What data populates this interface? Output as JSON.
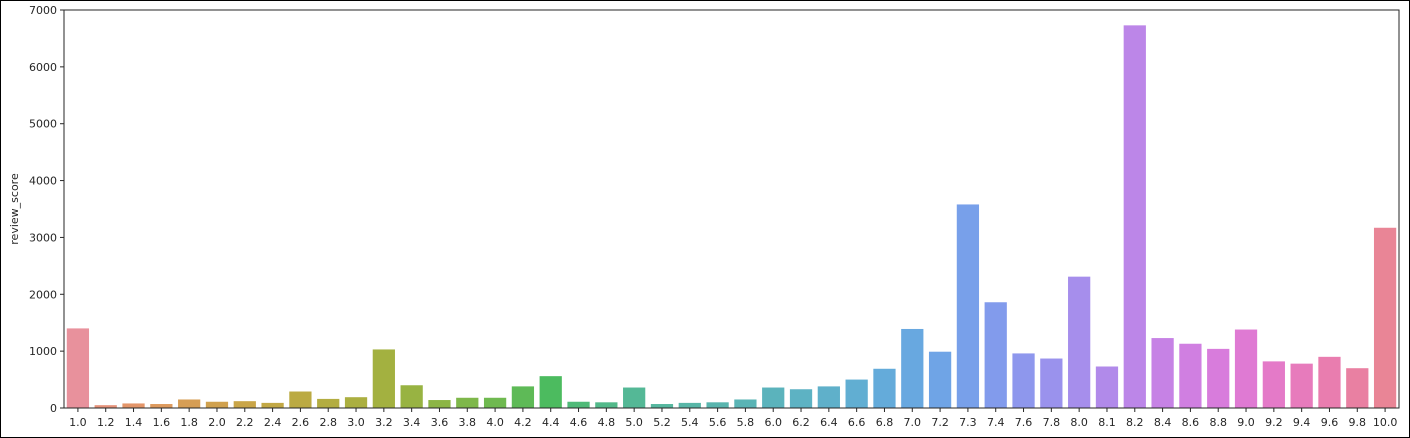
{
  "chart_data": {
    "type": "bar",
    "ylabel": "review_score",
    "xlabel": "",
    "title": "",
    "ylim": [
      0,
      7000
    ],
    "yticks": [
      0,
      1000,
      2000,
      3000,
      4000,
      5000,
      6000,
      7000
    ],
    "grid": false,
    "legend": "none",
    "categories": [
      "1.0",
      "1.2",
      "1.4",
      "1.6",
      "1.8",
      "2.0",
      "2.2",
      "2.4",
      "2.6",
      "2.8",
      "3.0",
      "3.2",
      "3.4",
      "3.6",
      "3.8",
      "4.0",
      "4.2",
      "4.4",
      "4.6",
      "4.8",
      "5.0",
      "5.2",
      "5.4",
      "5.6",
      "5.8",
      "6.0",
      "6.2",
      "6.4",
      "6.6",
      "6.8",
      "7.0",
      "7.2",
      "7.3",
      "7.4",
      "7.6",
      "7.8",
      "8.0",
      "8.1",
      "8.2",
      "8.4",
      "8.6",
      "8.8",
      "9.0",
      "9.2",
      "9.4",
      "9.6",
      "9.8",
      "10.0"
    ],
    "values": [
      1400,
      50,
      80,
      70,
      150,
      110,
      120,
      90,
      290,
      160,
      190,
      1030,
      400,
      140,
      180,
      180,
      380,
      560,
      110,
      100,
      360,
      70,
      90,
      100,
      150,
      360,
      330,
      380,
      500,
      690,
      1390,
      990,
      3580,
      1860,
      960,
      870,
      2310,
      730,
      6730,
      1230,
      1130,
      1040,
      1380,
      820,
      780,
      900,
      700,
      3170
    ],
    "colors": [
      "#e8919c",
      "#e7937b",
      "#e39569",
      "#dd9a5e",
      "#d69e55",
      "#d0a14e",
      "#c9a548",
      "#c2a845",
      "#bbaa42",
      "#b3ad41",
      "#abaf40",
      "#a3b140",
      "#98b342",
      "#8cb545",
      "#7eb74a",
      "#6fb950",
      "#5eba57",
      "#4cbb5f",
      "#4fba78",
      "#52b98a",
      "#54b896",
      "#56b79f",
      "#58b6a7",
      "#59b5ae",
      "#5ab4b5",
      "#5bb3bc",
      "#5db2c3",
      "#5fb0ca",
      "#61aed2",
      "#64abda",
      "#68a8e0",
      "#6fa4e6",
      "#78a0ea",
      "#829bec",
      "#8e97ed",
      "#9a92ed",
      "#a68eec",
      "#b18aea",
      "#bc86e8",
      "#c682e5",
      "#d07fe1",
      "#d87cdc",
      "#df7ad3",
      "#e47ac8",
      "#e77bbc",
      "#e97daf",
      "#e980a2",
      "#e98596"
    ]
  }
}
